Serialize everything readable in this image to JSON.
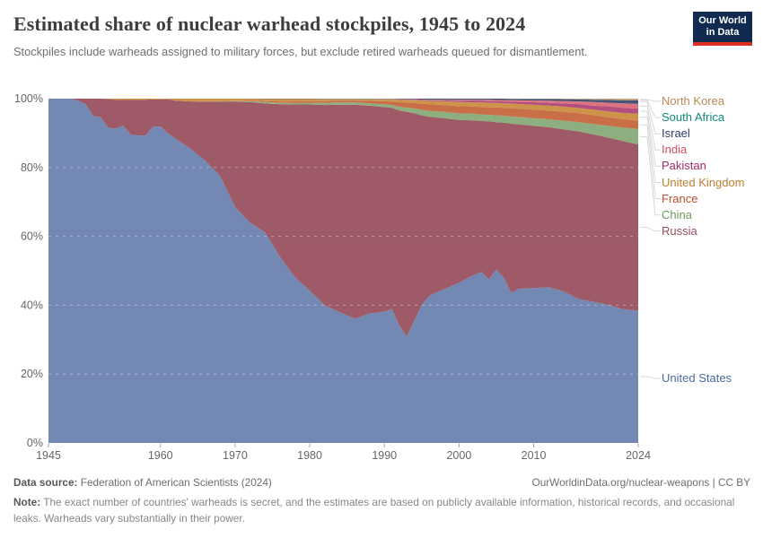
{
  "header": {
    "title": "Estimated share of nuclear warhead stockpiles, 1945 to 2024",
    "subtitle": "Stockpiles include warheads assigned to military forces, but exclude retired warheads queued for dismantlement."
  },
  "logo": {
    "line1": "Our World",
    "line2": "in Data",
    "bg_color": "#102A50",
    "bar_color": "#DC3022"
  },
  "chart_data": {
    "type": "area",
    "stacked": true,
    "normalized_to_100_percent": true,
    "title": "Estimated share of nuclear warhead stockpiles, 1945 to 2024",
    "xlabel": "",
    "ylabel": "",
    "unit": "%",
    "ylim": [
      0,
      100
    ],
    "grid": true,
    "gridlines_pct": [
      20,
      40,
      60,
      80
    ],
    "legend_position": "right",
    "yticks": [
      {
        "v": 0,
        "label": "0%"
      },
      {
        "v": 20,
        "label": "20%"
      },
      {
        "v": 40,
        "label": "40%"
      },
      {
        "v": 60,
        "label": "60%"
      },
      {
        "v": 80,
        "label": "80%"
      },
      {
        "v": 100,
        "label": "100%"
      }
    ],
    "xticks": [
      1945,
      1960,
      1970,
      1980,
      1990,
      2000,
      2010,
      2024
    ],
    "x": [
      1945,
      1948,
      1949,
      1950,
      1951,
      1952,
      1953,
      1954,
      1955,
      1956,
      1957,
      1958,
      1959,
      1960,
      1961,
      1962,
      1964,
      1966,
      1968,
      1970,
      1972,
      1974,
      1976,
      1978,
      1980,
      1982,
      1984,
      1986,
      1988,
      1990,
      1991,
      1992,
      1993,
      1994,
      1995,
      1996,
      1998,
      2000,
      2002,
      2003,
      2004,
      2005,
      2006,
      2007,
      2008,
      2010,
      2012,
      2014,
      2016,
      2018,
      2020,
      2022,
      2024
    ],
    "series": [
      {
        "name": "United States",
        "color": "#4C6A9C",
        "fill": "#7389B3",
        "values": [
          100,
          100,
          99.4,
          98.3,
          95,
          94.6,
          91.5,
          91.3,
          92.2,
          89.6,
          89.3,
          89.3,
          91.9,
          91.9,
          89.9,
          88.4,
          85.5,
          82,
          77.5,
          68.5,
          64,
          61.2,
          54.1,
          48.2,
          44.2,
          40,
          38,
          36.1,
          37.6,
          38.1,
          38.9,
          34.1,
          31,
          35.5,
          40,
          42.7,
          44.7,
          46.5,
          48.8,
          49.7,
          47.5,
          50.4,
          48,
          43.6,
          44.8,
          45,
          45.2,
          44,
          41.8,
          41,
          40.1,
          38.8,
          38.5
        ]
      },
      {
        "name": "Russia",
        "color": "#9A4C5C",
        "fill": "#9E5A66",
        "values": [
          0,
          0,
          0.6,
          1.7,
          5,
          5.4,
          8.4,
          8.4,
          7.4,
          10,
          10.4,
          10.4,
          7.9,
          7.9,
          9.9,
          11,
          13.7,
          17.1,
          21.6,
          30.6,
          35,
          37.4,
          44.3,
          50.1,
          54.1,
          58.15,
          60.25,
          62.15,
          60.35,
          59.45,
          58.45,
          62.45,
          65.2,
          60.25,
          55.15,
          52.05,
          49.65,
          47.3,
          44.9,
          43.8,
          45.9,
          42.75,
          45.05,
          49.1,
          47.75,
          47.1,
          46.5,
          47.1,
          48.7,
          48.6,
          48.6,
          48.85,
          48.2
        ]
      },
      {
        "name": "China",
        "color": "#6B9C5C",
        "fill": "#8DAE7E",
        "values": [
          0,
          0,
          0,
          0,
          0,
          0,
          0,
          0,
          0,
          0,
          0,
          0,
          0,
          0,
          0,
          0,
          0,
          0.1,
          0.1,
          0.2,
          0.3,
          0.4,
          0.4,
          0.4,
          0.5,
          0.6,
          0.7,
          0.65,
          0.7,
          0.8,
          0.8,
          1.1,
          1.2,
          1.4,
          1.6,
          1.7,
          1.8,
          1.9,
          1.9,
          1.9,
          1.9,
          2,
          2,
          2.1,
          2.1,
          2.2,
          2.3,
          2.5,
          2.7,
          3,
          3.4,
          3.9,
          4.5
        ]
      },
      {
        "name": "France",
        "color": "#BC4E2C",
        "fill": "#C96F47",
        "values": [
          0,
          0,
          0,
          0,
          0,
          0,
          0,
          0,
          0,
          0,
          0,
          0,
          0,
          0,
          0,
          0,
          0,
          0.1,
          0.1,
          0.1,
          0.2,
          0.3,
          0.4,
          0.5,
          0.5,
          0.5,
          0.5,
          0.55,
          0.7,
          0.9,
          1,
          1.3,
          1.4,
          1.6,
          1.8,
          1.9,
          2,
          2.1,
          2.1,
          2.2,
          2.2,
          2.3,
          2.3,
          2.4,
          2.4,
          2.5,
          2.5,
          2.6,
          2.6,
          2.6,
          2.5,
          2.5,
          2.4
        ]
      },
      {
        "name": "United Kingdom",
        "color": "#BE7E2F",
        "fill": "#CC9349",
        "values": [
          0,
          0,
          0,
          0,
          0,
          0,
          0.1,
          0.3,
          0.4,
          0.4,
          0.3,
          0.3,
          0.2,
          0.2,
          0.2,
          0.6,
          0.8,
          0.7,
          0.7,
          0.6,
          0.5,
          0.6,
          0.7,
          0.7,
          0.6,
          0.6,
          0.4,
          0.4,
          0.5,
          0.5,
          0.6,
          0.7,
          0.8,
          0.8,
          0.9,
          1,
          1.1,
          1.2,
          1.2,
          1.3,
          1.3,
          1.3,
          1.3,
          1.4,
          1.4,
          1.4,
          1.5,
          1.5,
          1.5,
          1.6,
          1.7,
          1.8,
          2
        ]
      },
      {
        "name": "Pakistan",
        "color": "#A42A6C",
        "fill": "#B34E7F",
        "values": [
          0,
          0,
          0,
          0,
          0,
          0,
          0,
          0,
          0,
          0,
          0,
          0,
          0,
          0,
          0,
          0,
          0,
          0,
          0,
          0,
          0,
          0,
          0,
          0,
          0,
          0,
          0,
          0,
          0,
          0.05,
          0.05,
          0.1,
          0.1,
          0.15,
          0.15,
          0.2,
          0.25,
          0.4,
          0.45,
          0.45,
          0.5,
          0.5,
          0.55,
          0.55,
          0.6,
          0.75,
          0.8,
          0.9,
          1.1,
          1.2,
          1.4,
          1.5,
          1.5
        ]
      },
      {
        "name": "India",
        "color": "#D34E62",
        "fill": "#DE7380",
        "values": [
          0,
          0,
          0,
          0,
          0,
          0,
          0,
          0,
          0,
          0,
          0,
          0,
          0,
          0,
          0,
          0,
          0,
          0,
          0,
          0,
          0,
          0,
          0,
          0,
          0,
          0,
          0,
          0,
          0,
          0.05,
          0.05,
          0.1,
          0.1,
          0.1,
          0.15,
          0.15,
          0.2,
          0.3,
          0.3,
          0.3,
          0.35,
          0.35,
          0.4,
          0.4,
          0.45,
          0.5,
          0.6,
          0.7,
          0.8,
          1,
          1.1,
          1.3,
          1.4
        ]
      },
      {
        "name": "Israel",
        "color": "#2C3E66",
        "fill": "#445577",
        "values": [
          0,
          0,
          0,
          0,
          0,
          0,
          0,
          0,
          0,
          0,
          0,
          0,
          0,
          0,
          0,
          0,
          0,
          0,
          0,
          0,
          0,
          0.1,
          0.1,
          0.1,
          0.1,
          0.1,
          0.1,
          0.1,
          0.1,
          0.1,
          0.1,
          0.15,
          0.2,
          0.2,
          0.25,
          0.3,
          0.3,
          0.3,
          0.35,
          0.35,
          0.35,
          0.4,
          0.4,
          0.4,
          0.4,
          0.45,
          0.5,
          0.55,
          0.6,
          0.7,
          0.8,
          0.9,
          1
        ]
      },
      {
        "name": "South Africa",
        "color": "#0F8A7F",
        "fill": "#57A8A0",
        "values": [
          0,
          0,
          0,
          0,
          0,
          0,
          0,
          0,
          0,
          0,
          0,
          0,
          0,
          0,
          0,
          0,
          0,
          0,
          0,
          0,
          0,
          0,
          0,
          0,
          0,
          0.05,
          0.05,
          0.05,
          0.05,
          0.05,
          0.05,
          0,
          0,
          0,
          0,
          0,
          0,
          0,
          0,
          0,
          0,
          0,
          0,
          0,
          0,
          0,
          0,
          0,
          0,
          0,
          0,
          0,
          0
        ]
      },
      {
        "name": "North Korea",
        "color": "#B98A57",
        "fill": "#C5A077",
        "values": [
          0,
          0,
          0,
          0,
          0,
          0,
          0,
          0,
          0,
          0,
          0,
          0,
          0,
          0,
          0,
          0,
          0,
          0,
          0,
          0,
          0,
          0,
          0,
          0,
          0,
          0,
          0,
          0,
          0,
          0,
          0,
          0,
          0,
          0,
          0,
          0,
          0,
          0,
          0,
          0,
          0,
          0,
          0,
          0.05,
          0.1,
          0.1,
          0.1,
          0.15,
          0.2,
          0.3,
          0.4,
          0.45,
          0.5
        ]
      }
    ]
  },
  "legend": {
    "items": [
      {
        "label": "North Korea"
      },
      {
        "label": "South Africa"
      },
      {
        "label": "Israel"
      },
      {
        "label": "India"
      },
      {
        "label": "Pakistan"
      },
      {
        "label": "United Kingdom"
      },
      {
        "label": "France"
      },
      {
        "label": "China"
      },
      {
        "label": "Russia"
      },
      {
        "label": "United States"
      }
    ]
  },
  "footer": {
    "source_label": "Data source:",
    "source_text": "Federation of American Scientists (2024)",
    "link_text": "OurWorldinData.org/nuclear-weapons | CC BY",
    "note_label": "Note:",
    "note_text": "The exact number of countries' warheads is secret, and the estimates are based on publicly available information, historical records, and occasional leaks. Warheads vary substantially in their power."
  }
}
